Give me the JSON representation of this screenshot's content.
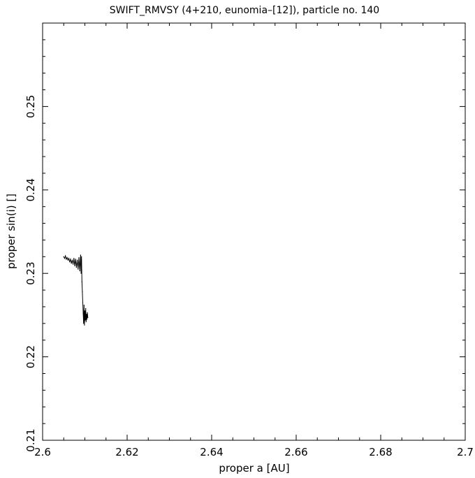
{
  "chart_data": {
    "type": "line",
    "title": "SWIFT_RMVSY (4+210, eunomia–[12]), particle no. 140",
    "xlabel": "proper a [AU]",
    "ylabel": "proper sin(i) []",
    "xlim": [
      2.6,
      2.7
    ],
    "ylim": [
      0.21,
      0.26
    ],
    "x_ticks": [
      "2.6",
      "2.62",
      "2.64",
      "2.66",
      "2.68",
      "2.7"
    ],
    "y_ticks": [
      "0.21",
      "0.22",
      "0.23",
      "0.24",
      "0.25"
    ],
    "grid": false,
    "line_color": "#000000",
    "series": [
      {
        "points": [
          [
            2.605,
            0.232
          ],
          [
            2.6052,
            0.2318
          ],
          [
            2.6054,
            0.2321
          ],
          [
            2.6056,
            0.2317
          ],
          [
            2.6058,
            0.2319
          ],
          [
            2.606,
            0.2316
          ],
          [
            2.6062,
            0.2318
          ],
          [
            2.6064,
            0.2314
          ],
          [
            2.6066,
            0.2317
          ],
          [
            2.6068,
            0.2312
          ],
          [
            2.607,
            0.2316
          ],
          [
            2.6072,
            0.2311
          ],
          [
            2.6074,
            0.2318
          ],
          [
            2.6076,
            0.2309
          ],
          [
            2.6078,
            0.2317
          ],
          [
            2.608,
            0.2307
          ],
          [
            2.6082,
            0.2316
          ],
          [
            2.6084,
            0.2305
          ],
          [
            2.6086,
            0.2319
          ],
          [
            2.6088,
            0.2303
          ],
          [
            2.609,
            0.2322
          ],
          [
            2.6091,
            0.23
          ],
          [
            2.6092,
            0.232
          ],
          [
            2.6093,
            0.229
          ],
          [
            2.6094,
            0.2278
          ],
          [
            2.6095,
            0.2265
          ],
          [
            2.6096,
            0.2252
          ],
          [
            2.6097,
            0.224
          ],
          [
            2.6098,
            0.2262
          ],
          [
            2.6099,
            0.2238
          ],
          [
            2.61,
            0.2255
          ],
          [
            2.6101,
            0.2244
          ],
          [
            2.6102,
            0.2258
          ],
          [
            2.6103,
            0.2242
          ],
          [
            2.6104,
            0.2251
          ],
          [
            2.6105,
            0.2245
          ],
          [
            2.6106,
            0.2253
          ],
          [
            2.6107,
            0.2247
          ]
        ]
      }
    ]
  }
}
